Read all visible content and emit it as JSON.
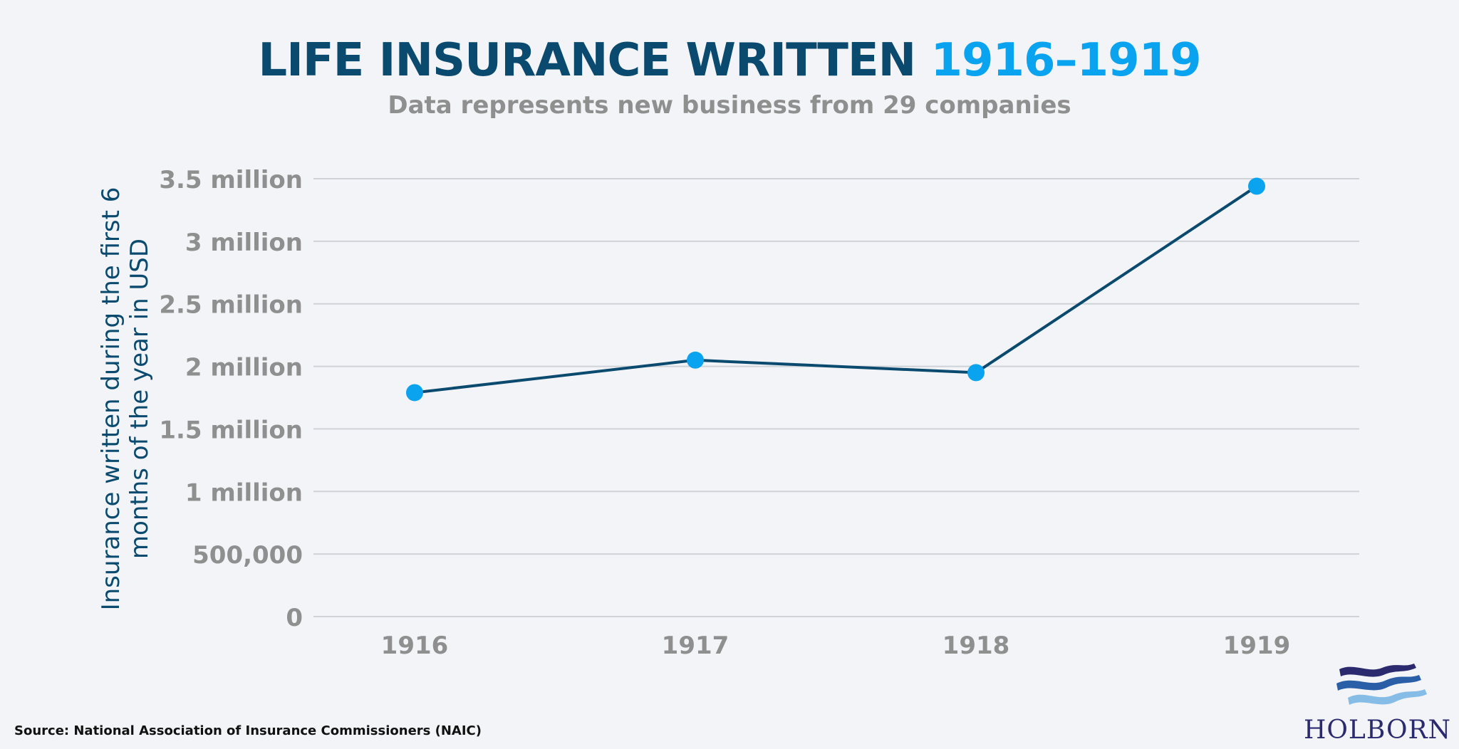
{
  "header": {
    "title_main": "LIFE INSURANCE WRITTEN",
    "title_accent": "1916–1919",
    "subtitle": "Data represents new business from 29 companies"
  },
  "colors": {
    "title": "#0b4a6f",
    "accent": "#0aa3ef",
    "line": "#0b4a6f",
    "marker": "#0aa3ef",
    "tick_text": "#8f8f8f",
    "grid": "#cfd3d8",
    "background": "#f2f4f7"
  },
  "chart_data": {
    "type": "line",
    "title": "LIFE INSURANCE WRITTEN 1916–1919",
    "subtitle": "Data represents new business from 29 companies",
    "xlabel": "",
    "ylabel": "Insurance written during the first 6 months of the year in USD",
    "categories": [
      "1916",
      "1917",
      "1918",
      "1919"
    ],
    "series": [
      {
        "values": [
          1790000,
          2050000,
          1950000,
          3440000
        ]
      }
    ],
    "ylim": [
      0,
      3500000
    ],
    "yticks": [
      {
        "value": 0,
        "label": "0"
      },
      {
        "value": 500000,
        "label": "500,000"
      },
      {
        "value": 1000000,
        "label": "1 million"
      },
      {
        "value": 1500000,
        "label": "1.5 million"
      },
      {
        "value": 2000000,
        "label": "2 million"
      },
      {
        "value": 2500000,
        "label": "2.5 million"
      },
      {
        "value": 3000000,
        "label": "3 million"
      },
      {
        "value": 3500000,
        "label": "3.5 million"
      }
    ],
    "grid": true,
    "legend": "none"
  },
  "footer": {
    "source": "Source: National Association of Insurance Commissioners (NAIC)",
    "logo_text": "HOLBORN"
  }
}
